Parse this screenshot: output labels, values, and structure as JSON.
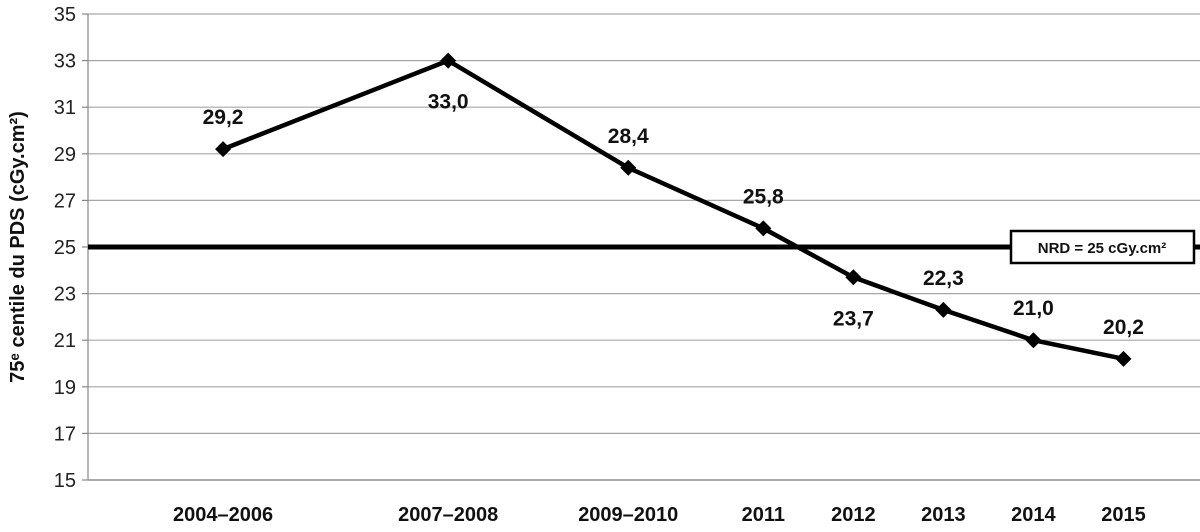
{
  "chart_data": {
    "type": "line",
    "title": "",
    "xlabel": "",
    "ylabel": "75ᵉ centile du PDS (cGy.cm²)",
    "ylim": [
      15,
      35
    ],
    "yticks": [
      15,
      17,
      19,
      21,
      23,
      25,
      27,
      29,
      31,
      33,
      35
    ],
    "ytick_labels": [
      "15",
      "17",
      "19",
      "21",
      "23",
      "25",
      "27",
      "29",
      "31",
      "33",
      "35"
    ],
    "grid": true,
    "categories": [
      "2004–2006",
      "2007–2008",
      "2009–2010",
      "2011",
      "2012",
      "2013",
      "2014",
      "2015"
    ],
    "x": [
      2005,
      2007.5,
      2009.5,
      2011,
      2012,
      2013,
      2014,
      2015
    ],
    "values": [
      29.2,
      33.0,
      28.4,
      25.8,
      23.7,
      22.3,
      21.0,
      20.2
    ],
    "data_labels": [
      "29,2",
      "33,0",
      "28,4",
      "25,8",
      "23,7",
      "22,3",
      "21,0",
      "20,2"
    ],
    "data_label_position": [
      "above",
      "below",
      "above",
      "above",
      "below",
      "above",
      "above",
      "above"
    ],
    "reference_line": {
      "value": 25,
      "label": "NRD = 25 cGy.cm²"
    },
    "colors": {
      "line": "#000000",
      "grid": "#a6a6a6",
      "marker": "#000000"
    }
  }
}
